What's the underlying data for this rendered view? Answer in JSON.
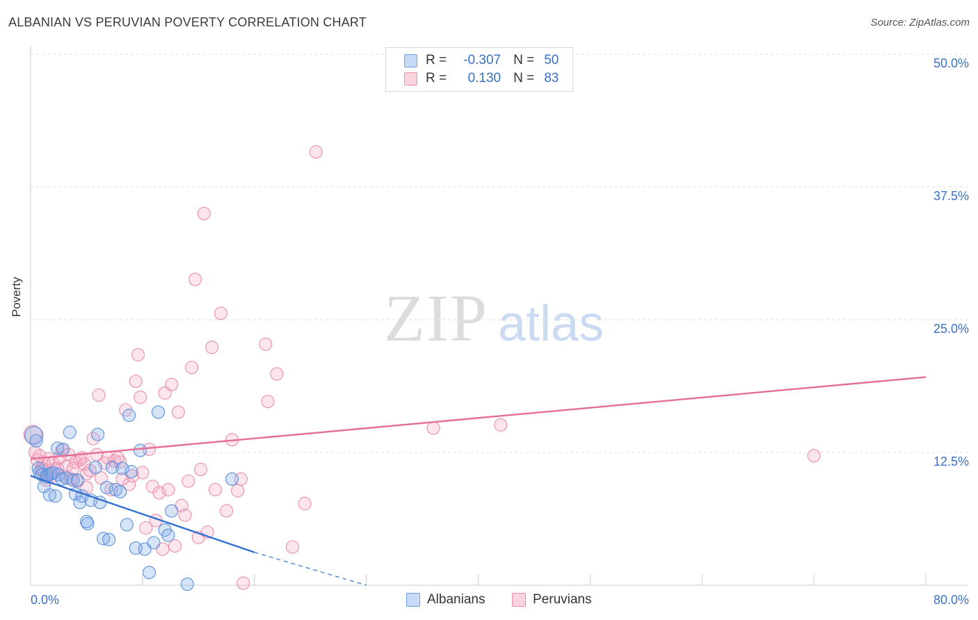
{
  "header": {
    "title": "ALBANIAN VS PERUVIAN POVERTY CORRELATION CHART",
    "source": "Source: ZipAtlas.com"
  },
  "watermark": {
    "zip": "ZIP",
    "atlas": "atlas"
  },
  "legend": {
    "rows": [
      {
        "r_label": "R =",
        "r_value": "-0.307",
        "n_label": "N =",
        "n_value": "50",
        "color": "#9cc0ef"
      },
      {
        "r_label": "R =",
        "r_value": "0.130",
        "n_label": "N =",
        "n_value": "83",
        "color": "#f5b8c9"
      }
    ]
  },
  "bottom_legend": {
    "albanians": "Albanians",
    "peruvians": "Peruvians"
  },
  "chart_data": {
    "type": "scatter",
    "title": "ALBANIAN VS PERUVIAN POVERTY CORRELATION CHART",
    "xlabel": "",
    "ylabel": "Poverty",
    "xlim": [
      0,
      80
    ],
    "ylim": [
      0,
      50
    ],
    "x_tick_labels": [
      "0.0%",
      "80.0%"
    ],
    "y_tick_labels": [
      "12.5%",
      "25.0%",
      "37.5%",
      "50.0%"
    ],
    "y_ticks": [
      12.5,
      25,
      37.5,
      50
    ],
    "grid": true,
    "legend_position": "top-center",
    "series": [
      {
        "name": "Albanians",
        "color": "#5b93e0",
        "trend": {
          "x": [
            0,
            20,
            30
          ],
          "y": [
            10.3,
            3.1,
            -0.5
          ]
        },
        "points": [
          [
            0.3,
            14.1
          ],
          [
            0.5,
            13.6
          ],
          [
            0.7,
            11.0
          ],
          [
            0.8,
            10.6
          ],
          [
            1.0,
            10.4
          ],
          [
            1.2,
            9.3
          ],
          [
            1.4,
            10.2
          ],
          [
            1.5,
            10.4
          ],
          [
            1.7,
            8.5
          ],
          [
            1.8,
            10.5
          ],
          [
            2.0,
            10.6
          ],
          [
            2.2,
            8.4
          ],
          [
            2.4,
            12.9
          ],
          [
            2.5,
            10.4
          ],
          [
            2.8,
            10.0
          ],
          [
            2.9,
            12.8
          ],
          [
            3.2,
            10.1
          ],
          [
            3.5,
            14.4
          ],
          [
            3.8,
            9.9
          ],
          [
            4.0,
            8.6
          ],
          [
            4.2,
            9.9
          ],
          [
            4.4,
            7.8
          ],
          [
            4.6,
            8.4
          ],
          [
            5.0,
            6.0
          ],
          [
            5.1,
            5.8
          ],
          [
            5.4,
            8.0
          ],
          [
            5.8,
            11.1
          ],
          [
            6.0,
            14.2
          ],
          [
            6.2,
            7.8
          ],
          [
            6.5,
            4.4
          ],
          [
            6.8,
            9.2
          ],
          [
            7.0,
            4.3
          ],
          [
            7.3,
            11.1
          ],
          [
            7.6,
            9.0
          ],
          [
            8.0,
            8.8
          ],
          [
            8.2,
            11.0
          ],
          [
            8.6,
            5.7
          ],
          [
            8.8,
            16.0
          ],
          [
            9.0,
            10.7
          ],
          [
            9.4,
            3.5
          ],
          [
            9.8,
            12.7
          ],
          [
            10.2,
            3.4
          ],
          [
            10.6,
            1.2
          ],
          [
            11.0,
            4.0
          ],
          [
            11.4,
            16.3
          ],
          [
            12.0,
            5.2
          ],
          [
            12.3,
            4.7
          ],
          [
            12.6,
            7.0
          ],
          [
            14.0,
            0.1
          ],
          [
            18.0,
            10.0
          ]
        ]
      },
      {
        "name": "Peruvians",
        "color": "#ee85a4",
        "trend": {
          "x": [
            0,
            80
          ],
          "y": [
            11.9,
            19.6
          ]
        },
        "points": [
          [
            0.2,
            14.2
          ],
          [
            0.4,
            12.5
          ],
          [
            0.6,
            11.8
          ],
          [
            0.8,
            12.2
          ],
          [
            1.0,
            11.0
          ],
          [
            1.2,
            11.5
          ],
          [
            1.4,
            9.9
          ],
          [
            1.6,
            11.9
          ],
          [
            1.8,
            10.2
          ],
          [
            2.0,
            11.5
          ],
          [
            2.2,
            10.8
          ],
          [
            2.4,
            11.0
          ],
          [
            2.6,
            12.0
          ],
          [
            2.8,
            12.7
          ],
          [
            3.0,
            10.3
          ],
          [
            3.2,
            11.2
          ],
          [
            3.4,
            12.3
          ],
          [
            3.6,
            10.0
          ],
          [
            3.8,
            11.0
          ],
          [
            4.0,
            11.6
          ],
          [
            4.2,
            9.8
          ],
          [
            4.4,
            11.8
          ],
          [
            4.6,
            12.0
          ],
          [
            4.8,
            11.4
          ],
          [
            5.0,
            9.2
          ],
          [
            5.3,
            10.8
          ],
          [
            5.6,
            13.8
          ],
          [
            5.9,
            12.3
          ],
          [
            6.1,
            17.9
          ],
          [
            6.3,
            10.1
          ],
          [
            6.6,
            11.5
          ],
          [
            6.9,
            12.0
          ],
          [
            7.2,
            9.0
          ],
          [
            7.5,
            11.7
          ],
          [
            7.8,
            12.0
          ],
          [
            8.0,
            11.6
          ],
          [
            8.2,
            10.0
          ],
          [
            8.5,
            16.5
          ],
          [
            8.8,
            9.5
          ],
          [
            9.1,
            10.3
          ],
          [
            9.4,
            19.2
          ],
          [
            9.6,
            21.7
          ],
          [
            9.8,
            17.7
          ],
          [
            10.0,
            10.6
          ],
          [
            10.3,
            5.4
          ],
          [
            10.6,
            12.8
          ],
          [
            10.9,
            9.3
          ],
          [
            11.2,
            6.1
          ],
          [
            11.5,
            8.7
          ],
          [
            11.8,
            3.4
          ],
          [
            12.0,
            18.1
          ],
          [
            12.3,
            9.0
          ],
          [
            12.6,
            18.9
          ],
          [
            12.9,
            3.7
          ],
          [
            13.2,
            16.3
          ],
          [
            13.5,
            7.5
          ],
          [
            13.8,
            6.6
          ],
          [
            14.1,
            9.8
          ],
          [
            14.4,
            20.5
          ],
          [
            14.7,
            28.8
          ],
          [
            15.0,
            4.5
          ],
          [
            15.2,
            10.9
          ],
          [
            15.5,
            35.0
          ],
          [
            15.8,
            5.0
          ],
          [
            16.2,
            22.4
          ],
          [
            16.5,
            9.0
          ],
          [
            17.0,
            25.6
          ],
          [
            17.5,
            7.0
          ],
          [
            18.0,
            13.7
          ],
          [
            18.5,
            8.9
          ],
          [
            18.8,
            10.0
          ],
          [
            19.0,
            0.2
          ],
          [
            21.0,
            22.7
          ],
          [
            21.2,
            17.3
          ],
          [
            22.0,
            19.9
          ],
          [
            23.4,
            3.6
          ],
          [
            24.5,
            7.7
          ],
          [
            25.5,
            40.8
          ],
          [
            36.0,
            14.8
          ],
          [
            42.0,
            15.1
          ],
          [
            70.0,
            12.2
          ],
          [
            1.0,
            10.8
          ],
          [
            5.0,
            10.5
          ]
        ]
      }
    ]
  }
}
